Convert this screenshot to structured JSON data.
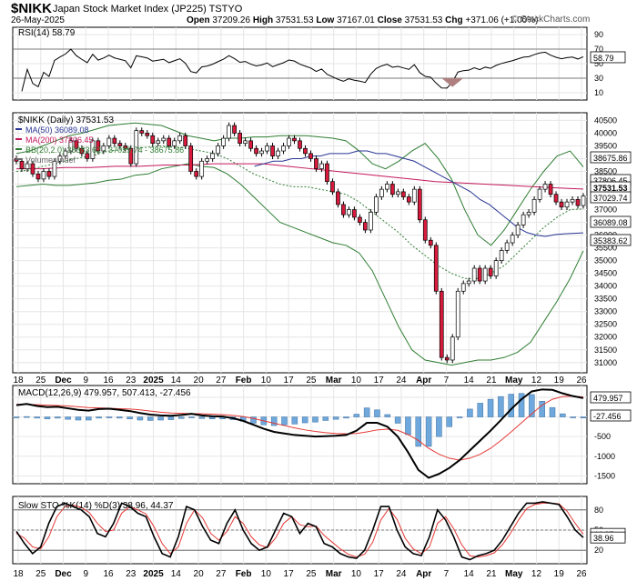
{
  "header": {
    "symbol": "$NIKK",
    "name": "Japan Stock Market Index (JP225)",
    "exchange": "TSTYO",
    "date": "26-May-2025",
    "open_label": "Open",
    "open": "37209.26",
    "high_label": "High",
    "high": "37531.53",
    "low_label": "Low",
    "low": "37167.01",
    "close_label": "Close",
    "close": "37531.53",
    "chg_label": "Chg",
    "chg": "+371.06 (+1.00%)",
    "watermark": "© StockCharts.com"
  },
  "chart_data": {
    "type": "candlestick",
    "x_labels": [
      "18",
      "25",
      "Dec",
      "9",
      "16",
      "23",
      "2025",
      "14",
      "20",
      "27",
      "Feb",
      "10",
      "17",
      "25",
      "Mar",
      "10",
      "17",
      "24",
      "Apr",
      "7",
      "14",
      "21",
      "May",
      "12",
      "19",
      "26"
    ],
    "x_labels_bold": [
      "Dec",
      "2025",
      "Feb",
      "Mar",
      "Apr",
      "May"
    ],
    "rsi": {
      "title": "RSI(14) 58.79",
      "levels": [
        70,
        30
      ],
      "ticks": [
        90,
        70,
        50,
        30,
        10
      ],
      "value_label": "58.79",
      "ylim": [
        0,
        100
      ]
    },
    "price": {
      "title": "$NIKK (Daily) 37531.53",
      "legend": [
        "MA(50) 36089.08",
        "MA(200) 37806.45",
        "BB(20,2.0) 35383.62 - 37029.74 - 38675.86",
        "Volume undef"
      ],
      "ticks": [
        31000,
        31500,
        32000,
        32500,
        33000,
        33500,
        34000,
        34500,
        35000,
        35500,
        36000,
        36500,
        37000,
        37500,
        38000,
        38500,
        39000,
        39500,
        40000,
        40500
      ],
      "value_labels": [
        "38675.86",
        "37806.45",
        "37531.53",
        "37029.74",
        "36089.08",
        "35383.62"
      ],
      "ylim": [
        30600,
        40800
      ],
      "closes": [
        38900,
        38600,
        38800,
        38400,
        38200,
        38500,
        38300,
        38900,
        39100,
        39300,
        39700,
        39400,
        39200,
        39000,
        39700,
        39300,
        39500,
        39800,
        39600,
        39500,
        39400,
        38800,
        40100,
        40000,
        39900,
        39600,
        39700,
        39800,
        39500,
        39700,
        39900,
        39500,
        38500,
        38300,
        38900,
        39000,
        39200,
        39500,
        39800,
        40300,
        40000,
        39600,
        39700,
        39400,
        39200,
        39300,
        39500,
        39100,
        39300,
        39500,
        39800,
        39700,
        39400,
        39200,
        39000,
        38600,
        38800,
        38100,
        37700,
        37200,
        36800,
        37000,
        36700,
        36500,
        36200,
        36900,
        37500,
        37800,
        38000,
        37600,
        37700,
        37500,
        37300,
        37800,
        36600,
        35800,
        35600,
        33800,
        31200,
        31100,
        32000,
        33800,
        34100,
        34200,
        34700,
        34200,
        34700,
        34400,
        35000,
        35400,
        35700,
        36000,
        36400,
        36800,
        36900,
        37400,
        37800,
        38000,
        37600,
        37300,
        37100,
        37300,
        37400,
        37160,
        37531
      ],
      "ma50": [
        38700,
        38800,
        38900,
        38900,
        39000,
        39000,
        39100,
        39100,
        39200,
        39200,
        39200,
        39300,
        39300,
        39200,
        39200,
        39100,
        39000,
        38900,
        38700,
        38500,
        38300,
        38100,
        37900,
        37700,
        37400,
        37200,
        36900,
        36600,
        36300,
        36100,
        36000,
        35950,
        36020,
        36050,
        36070,
        36089
      ],
      "ma200": [
        38600,
        38600,
        38650,
        38650,
        38700,
        38700,
        38750,
        38750,
        38800,
        38800,
        38800,
        38700,
        38600,
        38500,
        38400,
        38300,
        38200,
        38100,
        38050,
        38000,
        37950,
        37900,
        37850,
        37806
      ],
      "bb_upper": [
        39200,
        39300,
        39500,
        39700,
        39900,
        40000,
        40150,
        40300,
        40350,
        40400,
        40350,
        40300,
        40100,
        39900,
        39800,
        39700,
        39800,
        39800,
        39850,
        39850,
        39900,
        39900,
        39900,
        39850,
        39800,
        39700,
        39300,
        38800,
        38600,
        38900,
        39300,
        39600,
        39000,
        38200,
        37000,
        36000,
        35600,
        36200,
        37000,
        37800,
        38500,
        39100,
        39300,
        38676
      ],
      "bb_mid": [
        38500,
        38550,
        38700,
        38800,
        38950,
        39050,
        39150,
        39300,
        39350,
        39400,
        39450,
        39500,
        39450,
        39400,
        39300,
        39200,
        39000,
        38700,
        38400,
        38200,
        38000,
        37900,
        37900,
        37800,
        37700,
        37600,
        37300,
        36900,
        36500,
        36100,
        35600,
        35200,
        34800,
        34500,
        34300,
        34300,
        34500,
        34800,
        35300,
        35800,
        36300,
        36700,
        37000,
        37030
      ],
      "bb_lower": [
        37900,
        37950,
        38000,
        37950,
        37950,
        38000,
        38050,
        38150,
        38200,
        38350,
        38400,
        38600,
        38700,
        38800,
        38700,
        38650,
        38400,
        38000,
        37500,
        37000,
        36500,
        36300,
        36100,
        35900,
        35700,
        35600,
        35300,
        34600,
        33500,
        32400,
        31500,
        31100,
        31000,
        30900,
        31000,
        31100,
        31100,
        31200,
        31400,
        31800,
        32600,
        33400,
        34300,
        35384
      ]
    },
    "macd": {
      "title": "MACD(12,26,9) 479.957, 507.413, -27.456",
      "ticks": [
        500,
        0,
        -500,
        -1000,
        -1500
      ],
      "value_labels": [
        "479.957",
        "-27.456"
      ],
      "ylim": [
        -1700,
        800
      ],
      "macd": [
        300,
        330,
        280,
        250,
        260,
        220,
        180,
        160,
        200,
        210,
        180,
        150,
        100,
        60,
        40,
        30,
        50,
        80,
        40,
        20,
        10,
        -30,
        -100,
        -200,
        -300,
        -380,
        -420,
        -460,
        -480,
        -500,
        -490,
        -480,
        -460,
        -350,
        -150,
        -150,
        -250,
        -500,
        -900,
        -1350,
        -1550,
        -1450,
        -1300,
        -1100,
        -850,
        -600,
        -350,
        -80,
        200,
        450,
        650,
        700,
        690,
        600,
        530,
        480
      ],
      "signal": [
        320,
        320,
        310,
        300,
        290,
        280,
        260,
        240,
        230,
        220,
        210,
        200,
        180,
        150,
        120,
        100,
        90,
        85,
        80,
        70,
        60,
        40,
        10,
        -40,
        -100,
        -160,
        -220,
        -280,
        -330,
        -370,
        -400,
        -420,
        -430,
        -420,
        -380,
        -330,
        -310,
        -340,
        -450,
        -600,
        -800,
        -950,
        -1050,
        -1100,
        -1050,
        -950,
        -800,
        -600,
        -380,
        -150,
        80,
        300,
        450,
        520,
        530,
        507
      ]
    },
    "sto": {
      "title": "Slow STO %K(14) %D(3) 38.96, 44.37",
      "levels": [
        80,
        50,
        20
      ],
      "ticks": [
        80,
        50,
        20
      ],
      "value_labels": [
        "44.37",
        "38.96"
      ],
      "ylim": [
        0,
        100
      ],
      "k": [
        48,
        30,
        15,
        25,
        60,
        85,
        90,
        85,
        80,
        70,
        45,
        40,
        60,
        90,
        85,
        75,
        70,
        40,
        15,
        10,
        40,
        85,
        80,
        55,
        35,
        30,
        60,
        80,
        50,
        30,
        20,
        25,
        50,
        75,
        70,
        45,
        60,
        55,
        30,
        25,
        15,
        10,
        8,
        20,
        50,
        85,
        85,
        50,
        25,
        15,
        12,
        40,
        80,
        65,
        40,
        10,
        6,
        12,
        15,
        20,
        35,
        55,
        75,
        90,
        90,
        92,
        90,
        88,
        70,
        50,
        39
      ],
      "d": [
        45,
        38,
        25,
        22,
        40,
        70,
        85,
        87,
        84,
        76,
        60,
        48,
        50,
        75,
        85,
        80,
        74,
        55,
        30,
        15,
        25,
        60,
        80,
        68,
        45,
        35,
        48,
        70,
        60,
        40,
        28,
        24,
        38,
        60,
        70,
        58,
        55,
        56,
        42,
        32,
        22,
        14,
        10,
        14,
        32,
        65,
        82,
        66,
        38,
        22,
        15,
        25,
        60,
        70,
        52,
        28,
        12,
        10,
        12,
        16,
        28,
        45,
        65,
        82,
        88,
        90,
        90,
        89,
        78,
        60,
        44
      ]
    }
  }
}
